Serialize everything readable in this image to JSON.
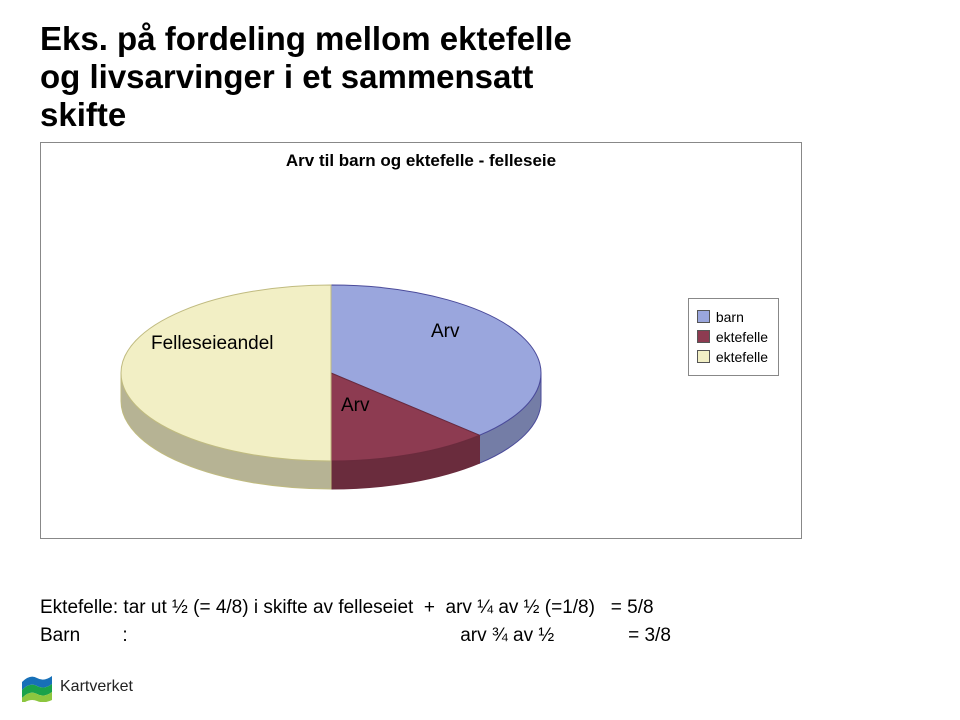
{
  "title": {
    "line1": "Eks. på fordeling mellom ektefelle",
    "line2": "og livsarvinger i et sammensatt",
    "line3": "skifte",
    "fontsize": 33,
    "color": "#000000"
  },
  "chart": {
    "type": "pie",
    "title": "Arv til barn og ektefelle - felleseie",
    "title_fontsize": 17,
    "background_color": "#ffffff",
    "frame_border_color": "#888888",
    "slices": [
      {
        "label": "barn",
        "value": 0.375,
        "color": "#9aa6dd",
        "border": "#4a4a9a"
      },
      {
        "label": "ektefelle",
        "value": 0.125,
        "color": "#8d3b51",
        "border": "#6a2b3d"
      },
      {
        "label": "ektefelle",
        "value": 0.5,
        "color": "#f2efc5",
        "border": "#c0bb80"
      }
    ],
    "side_color": "#d4d1a8",
    "overlay_labels": {
      "felleseieandel": "Felleseieandel",
      "arv_upper": "Arv",
      "arv_lower": "Arv",
      "fontsize": 19
    },
    "legend": {
      "items": [
        {
          "label": "barn",
          "color": "#9aa6dd"
        },
        {
          "label": "ektefelle",
          "color": "#8d3b51"
        },
        {
          "label": "ektefelle",
          "color": "#f2efc5"
        }
      ],
      "fontsize": 14,
      "border_color": "#888888"
    }
  },
  "body": {
    "line1": "Ektefelle: tar ut ½ (= 4/8) i skifte av felleseiet  +  arv ¼ av ½ (=1/8)   = 5/8",
    "line2": "Barn        :                                                               arv ¾ av ½              = 3/8",
    "fontsize": 19
  },
  "logo": {
    "text": "Kartverket",
    "fontsize": 16,
    "colors": {
      "top": "#1770b8",
      "mid": "#1aa24a",
      "bottom": "#8cc63f"
    }
  }
}
